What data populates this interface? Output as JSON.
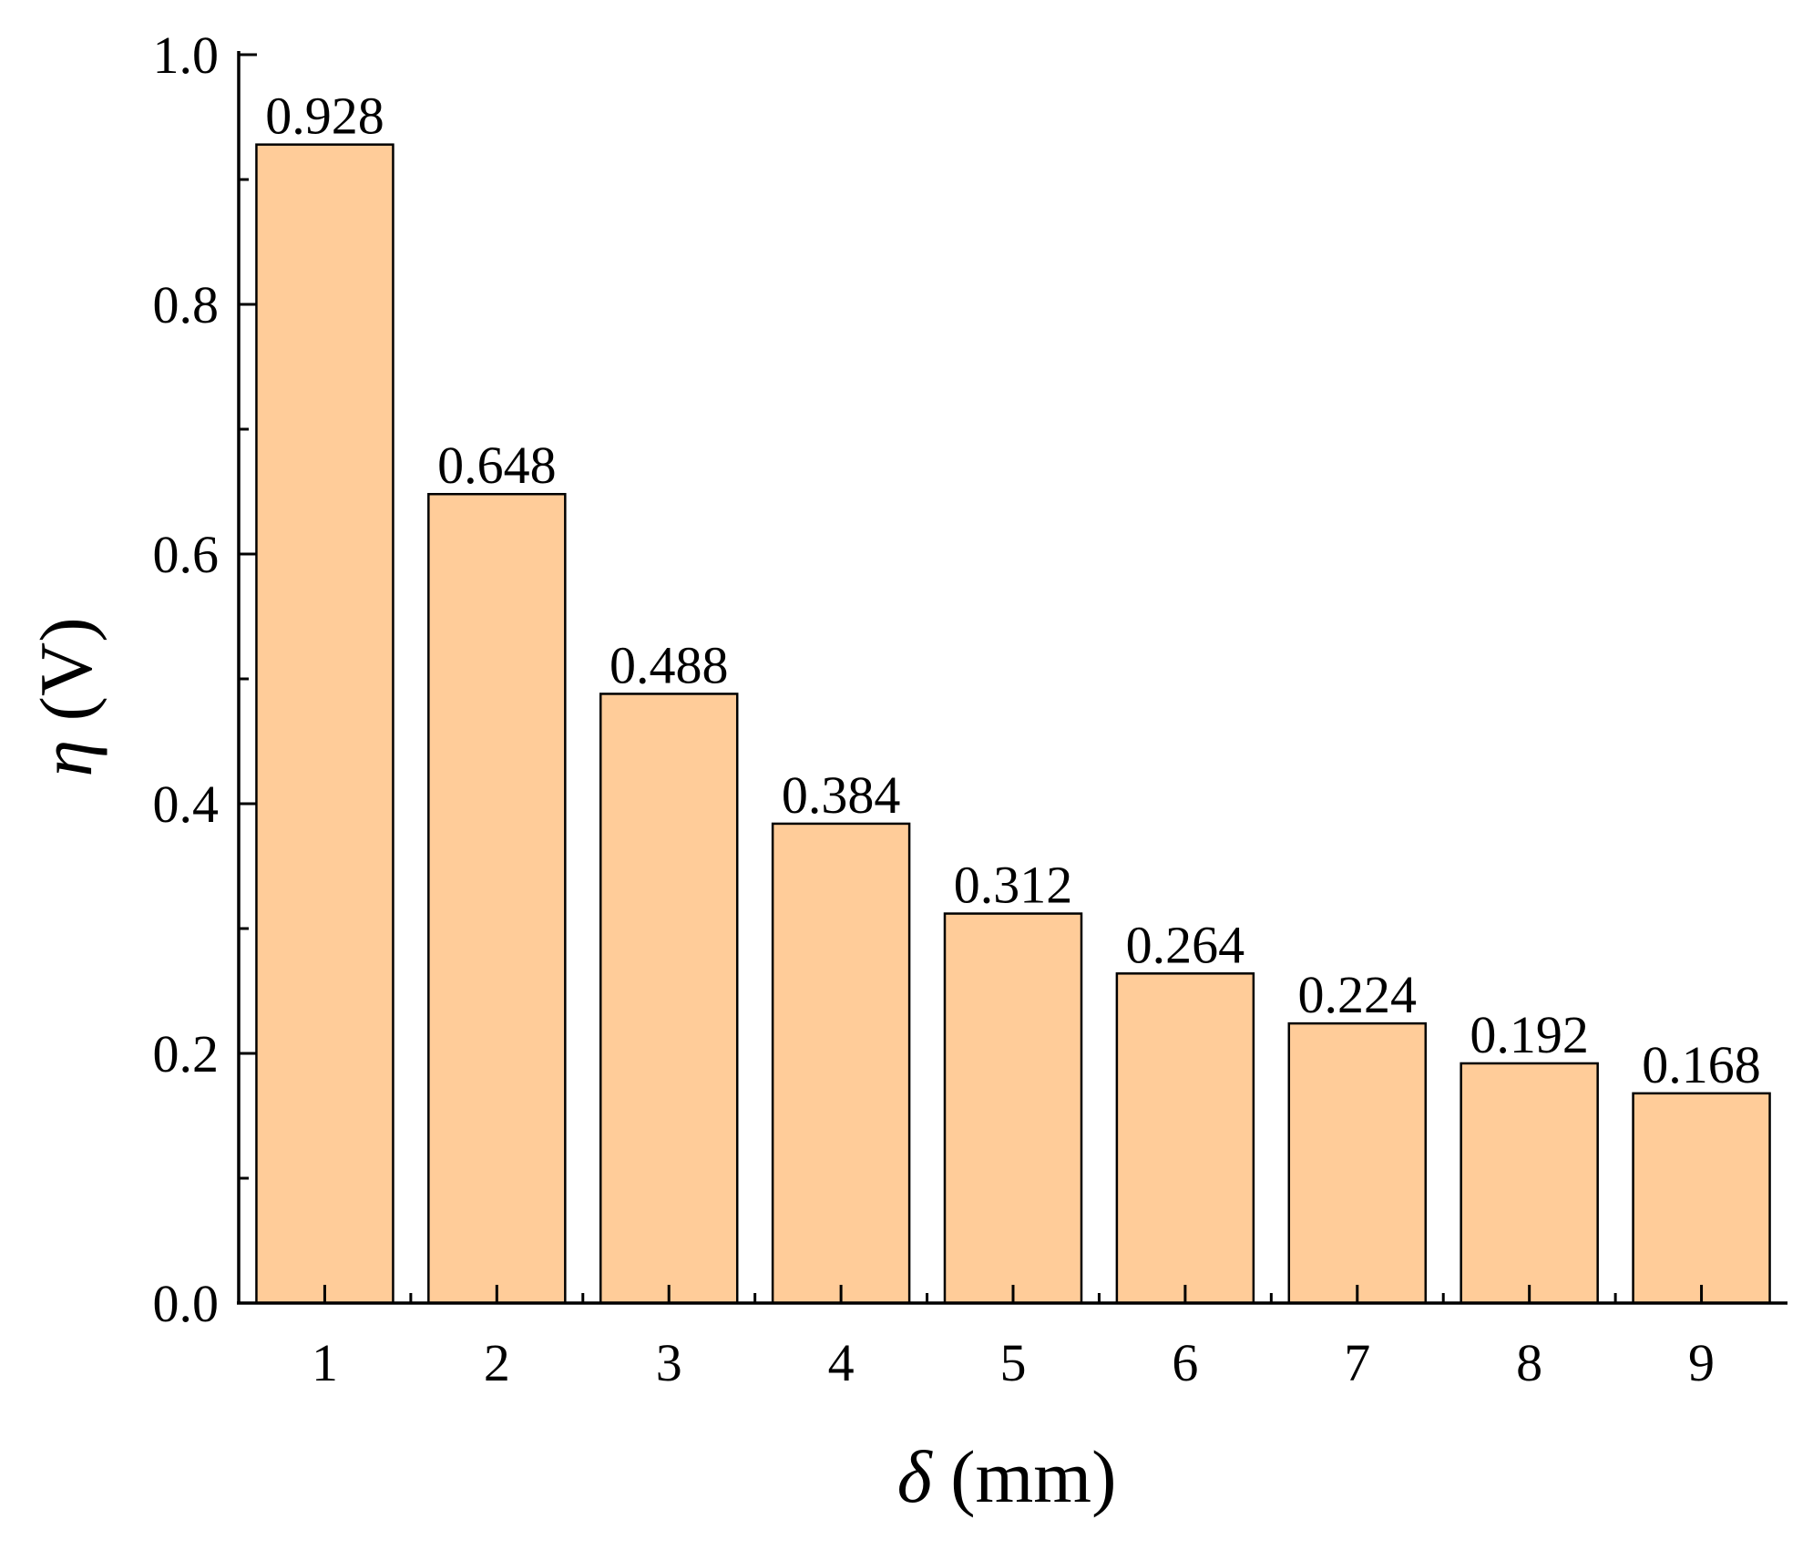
{
  "chart_data": {
    "type": "bar",
    "categories": [
      "1",
      "2",
      "3",
      "4",
      "5",
      "6",
      "7",
      "8",
      "9"
    ],
    "values": [
      0.928,
      0.648,
      0.488,
      0.384,
      0.312,
      0.264,
      0.224,
      0.192,
      0.168
    ],
    "data_labels": [
      "0.928",
      "0.648",
      "0.488",
      "0.384",
      "0.312",
      "0.264",
      "0.224",
      "0.192",
      "0.168"
    ],
    "title": "",
    "xlabel": {
      "symbol": "δ",
      "unit": " (mm)"
    },
    "ylabel": {
      "symbol": "η",
      "unit": " (V)"
    },
    "ylim": [
      0,
      1.0
    ],
    "yticks": [
      "0.0",
      "0.2",
      "0.4",
      "0.6",
      "0.8",
      "1.0"
    ],
    "grid": false,
    "legend": "none",
    "bar_color": "#FFCC99",
    "bar_edge_color": "#000000"
  }
}
